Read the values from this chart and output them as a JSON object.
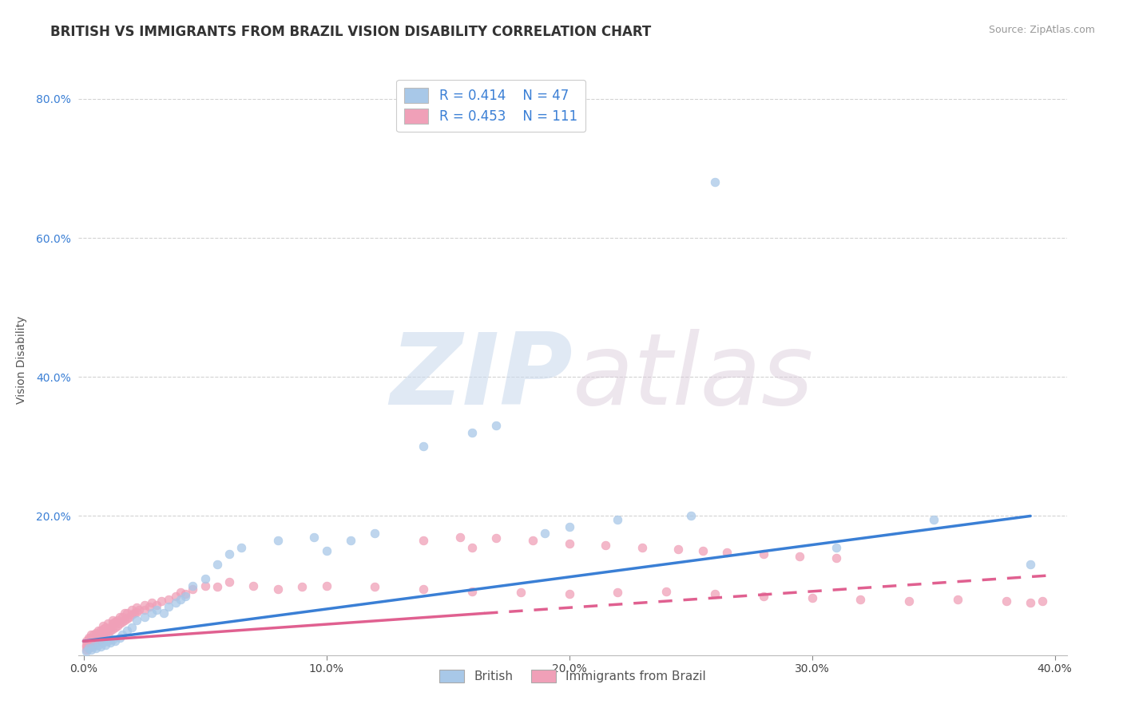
{
  "title": "BRITISH VS IMMIGRANTS FROM BRAZIL VISION DISABILITY CORRELATION CHART",
  "source_text": "Source: ZipAtlas.com",
  "ylabel": "Vision Disability",
  "xlim": [
    -0.002,
    0.405
  ],
  "ylim": [
    0.0,
    0.85
  ],
  "x_tick_labels": [
    "0.0%",
    "10.0%",
    "20.0%",
    "30.0%",
    "40.0%"
  ],
  "x_tick_vals": [
    0.0,
    0.1,
    0.2,
    0.3,
    0.4
  ],
  "y_tick_labels": [
    "20.0%",
    "40.0%",
    "60.0%",
    "80.0%"
  ],
  "y_tick_vals": [
    0.2,
    0.4,
    0.6,
    0.8
  ],
  "grid_color": "#c8c8c8",
  "background_color": "#ffffff",
  "watermark_zip": "ZIP",
  "watermark_atlas": "atlas",
  "legend_r1": "R = 0.414",
  "legend_n1": "N = 47",
  "legend_r2": "R = 0.453",
  "legend_n2": "N = 111",
  "british_color": "#a8c8e8",
  "brazil_color": "#f0a0b8",
  "british_line_color": "#3a7fd5",
  "brazil_line_color": "#e06090",
  "title_fontsize": 12,
  "axis_label_fontsize": 10,
  "tick_fontsize": 10,
  "british_scatter_x": [
    0.001,
    0.002,
    0.003,
    0.004,
    0.005,
    0.006,
    0.007,
    0.008,
    0.009,
    0.01,
    0.011,
    0.012,
    0.013,
    0.015,
    0.016,
    0.018,
    0.02,
    0.022,
    0.025,
    0.028,
    0.03,
    0.033,
    0.035,
    0.038,
    0.04,
    0.042,
    0.045,
    0.05,
    0.055,
    0.06,
    0.065,
    0.08,
    0.095,
    0.1,
    0.11,
    0.12,
    0.14,
    0.16,
    0.17,
    0.19,
    0.2,
    0.22,
    0.25,
    0.26,
    0.31,
    0.35,
    0.39
  ],
  "british_scatter_y": [
    0.005,
    0.01,
    0.008,
    0.012,
    0.01,
    0.015,
    0.012,
    0.018,
    0.015,
    0.02,
    0.018,
    0.022,
    0.02,
    0.025,
    0.03,
    0.035,
    0.04,
    0.05,
    0.055,
    0.06,
    0.065,
    0.06,
    0.07,
    0.075,
    0.08,
    0.085,
    0.1,
    0.11,
    0.13,
    0.145,
    0.155,
    0.165,
    0.17,
    0.15,
    0.165,
    0.175,
    0.3,
    0.32,
    0.33,
    0.175,
    0.185,
    0.195,
    0.2,
    0.68,
    0.155,
    0.195,
    0.13
  ],
  "brazil_scatter_x": [
    0.001,
    0.001,
    0.001,
    0.001,
    0.002,
    0.002,
    0.002,
    0.002,
    0.002,
    0.003,
    0.003,
    0.003,
    0.003,
    0.003,
    0.004,
    0.004,
    0.004,
    0.004,
    0.005,
    0.005,
    0.005,
    0.005,
    0.006,
    0.006,
    0.006,
    0.006,
    0.007,
    0.007,
    0.007,
    0.008,
    0.008,
    0.008,
    0.008,
    0.009,
    0.009,
    0.009,
    0.01,
    0.01,
    0.01,
    0.011,
    0.011,
    0.012,
    0.012,
    0.012,
    0.013,
    0.013,
    0.014,
    0.014,
    0.015,
    0.015,
    0.016,
    0.016,
    0.017,
    0.017,
    0.018,
    0.018,
    0.019,
    0.02,
    0.02,
    0.021,
    0.022,
    0.022,
    0.023,
    0.025,
    0.025,
    0.027,
    0.028,
    0.03,
    0.032,
    0.035,
    0.038,
    0.04,
    0.042,
    0.045,
    0.05,
    0.055,
    0.06,
    0.07,
    0.08,
    0.09,
    0.1,
    0.12,
    0.14,
    0.16,
    0.18,
    0.2,
    0.22,
    0.24,
    0.26,
    0.28,
    0.3,
    0.32,
    0.34,
    0.36,
    0.38,
    0.39,
    0.395,
    0.14,
    0.155,
    0.17,
    0.185,
    0.2,
    0.215,
    0.23,
    0.245,
    0.255,
    0.265,
    0.28,
    0.295,
    0.31,
    0.16
  ],
  "brazil_scatter_y": [
    0.008,
    0.012,
    0.015,
    0.02,
    0.01,
    0.015,
    0.018,
    0.022,
    0.025,
    0.012,
    0.016,
    0.02,
    0.025,
    0.03,
    0.015,
    0.02,
    0.025,
    0.03,
    0.018,
    0.022,
    0.028,
    0.032,
    0.02,
    0.025,
    0.03,
    0.035,
    0.022,
    0.028,
    0.035,
    0.025,
    0.03,
    0.038,
    0.042,
    0.028,
    0.035,
    0.04,
    0.03,
    0.038,
    0.045,
    0.035,
    0.04,
    0.038,
    0.045,
    0.05,
    0.04,
    0.048,
    0.042,
    0.05,
    0.045,
    0.055,
    0.048,
    0.055,
    0.05,
    0.06,
    0.052,
    0.06,
    0.055,
    0.058,
    0.065,
    0.06,
    0.062,
    0.068,
    0.065,
    0.065,
    0.072,
    0.07,
    0.075,
    0.072,
    0.078,
    0.08,
    0.085,
    0.09,
    0.088,
    0.095,
    0.1,
    0.098,
    0.105,
    0.1,
    0.095,
    0.098,
    0.1,
    0.098,
    0.095,
    0.092,
    0.09,
    0.088,
    0.09,
    0.092,
    0.088,
    0.085,
    0.082,
    0.08,
    0.078,
    0.08,
    0.078,
    0.075,
    0.078,
    0.165,
    0.17,
    0.168,
    0.165,
    0.16,
    0.158,
    0.155,
    0.152,
    0.15,
    0.148,
    0.145,
    0.142,
    0.14,
    0.155
  ]
}
